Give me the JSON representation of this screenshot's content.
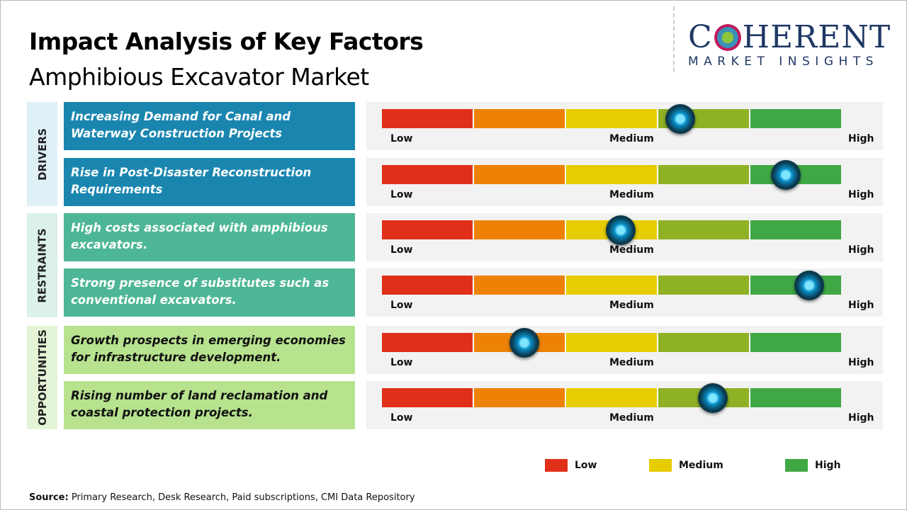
{
  "title": "Impact Analysis of Key Factors",
  "subtitle": "Amphibious Excavator Market",
  "logo": {
    "main": "COHERENT",
    "sub": "MARKET INSIGHTS"
  },
  "chart_data": {
    "type": "table",
    "scale_labels": [
      "Low",
      "Medium",
      "High"
    ],
    "segment_colors": [
      "#e03019",
      "#ee8207",
      "#e6cc00",
      "#8fb124",
      "#3fa845"
    ],
    "categories": [
      {
        "name": "DRIVERS",
        "label_bg": "#dff0f7",
        "factor_bg": "#1a86b0",
        "factor_color": "#ffffff"
      },
      {
        "name": "RESTRAINTS",
        "label_bg": "#dbf1ea",
        "factor_bg": "#4db696",
        "factor_color": "#ffffff"
      },
      {
        "name": "OPPORTUNITIES",
        "label_bg": "#e4f4d6",
        "factor_bg": "#b7e28e",
        "factor_color": "#111111"
      }
    ],
    "factors": [
      {
        "category": 0,
        "text": "Increasing Demand for Canal and Waterway Construction Projects",
        "impact": 0.65
      },
      {
        "category": 0,
        "text": "Rise in Post-Disaster  Reconstruction Requirements",
        "impact": 0.88
      },
      {
        "category": 1,
        "text": "High costs associated with amphibious excavators.",
        "impact": 0.52
      },
      {
        "category": 1,
        "text": "Strong presence of substitutes such as conventional excavators.",
        "impact": 0.93
      },
      {
        "category": 2,
        "text": "Growth prospects in emerging economies for infrastructure  development.",
        "impact": 0.31
      },
      {
        "category": 2,
        "text": "Rising number of land reclamation and coastal protection projects.",
        "impact": 0.72
      }
    ],
    "legend": [
      {
        "label": "Low",
        "color": "#e03019"
      },
      {
        "label": "Medium",
        "color": "#e6cc00"
      },
      {
        "label": "High",
        "color": "#3fa845"
      }
    ]
  },
  "source": {
    "label": "Source:",
    "text": " Primary Research, Desk Research, Paid subscriptions, CMI Data Repository"
  }
}
